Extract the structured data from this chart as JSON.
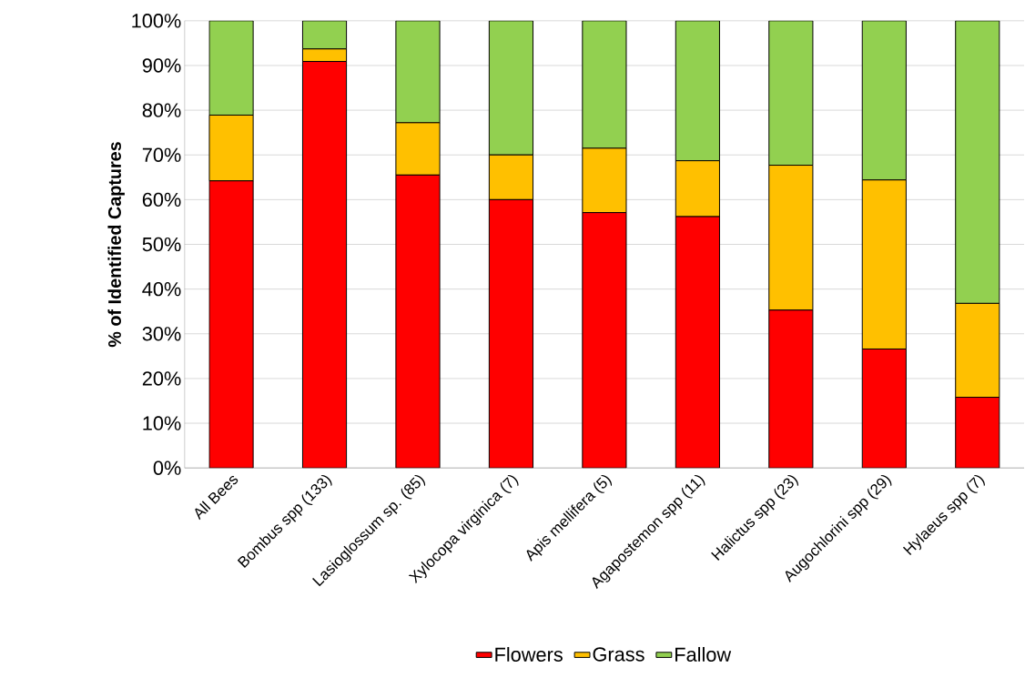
{
  "chart_data": {
    "type": "bar",
    "stacked": true,
    "ylabel": "% of Identified Captures",
    "categories": [
      "All Bees",
      "Bombus spp (133)",
      "Lasioglossum sp. (85)",
      "Xylocopa virginica (7)",
      "Apis mellifera (5)",
      "Agapostemon spp (11)",
      "Halictus spp (23)",
      "Augochlorini spp (29)",
      "Hylaeus spp (7)"
    ],
    "series": [
      {
        "name": "Flowers",
        "color": "#ff0000",
        "values": [
          64.2,
          90.9,
          65.5,
          60.0,
          57.1,
          56.2,
          35.3,
          26.6,
          15.8
        ]
      },
      {
        "name": "Grass",
        "color": "#ffc000",
        "values": [
          14.7,
          2.8,
          11.7,
          10.0,
          14.4,
          12.5,
          32.4,
          37.8,
          21.0
        ]
      },
      {
        "name": "Fallow",
        "color": "#92d050",
        "values": [
          21.1,
          6.3,
          22.8,
          30.0,
          28.5,
          31.3,
          32.3,
          35.6,
          63.2
        ]
      }
    ],
    "ylim": [
      0,
      100
    ],
    "yticks": [
      {
        "value": 0,
        "label": "0%"
      },
      {
        "value": 10,
        "label": "10%"
      },
      {
        "value": 20,
        "label": "20%"
      },
      {
        "value": 30,
        "label": "30%"
      },
      {
        "value": 40,
        "label": "40%"
      },
      {
        "value": 50,
        "label": "50%"
      },
      {
        "value": 60,
        "label": "60%"
      },
      {
        "value": 70,
        "label": "70%"
      },
      {
        "value": 80,
        "label": "80%"
      },
      {
        "value": 90,
        "label": "90%"
      },
      {
        "value": 100,
        "label": "100%"
      }
    ],
    "grid": "y",
    "legend": "bottom"
  }
}
